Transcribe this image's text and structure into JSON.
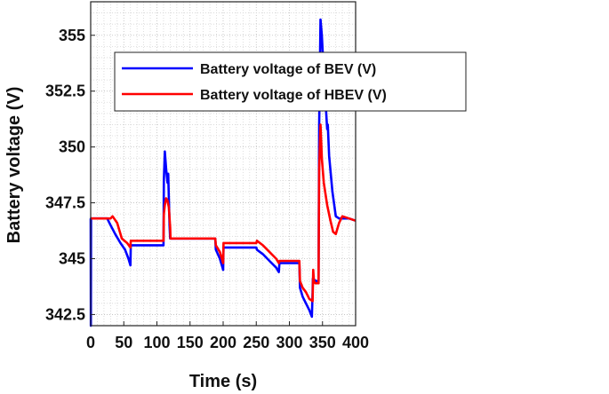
{
  "chart_data": {
    "type": "line",
    "title": "",
    "xlabel": "Time (s)",
    "ylabel": "Battery voltage (V)",
    "xlim": [
      0,
      400
    ],
    "ylim": [
      342,
      356.5
    ],
    "xticks": [
      0,
      50,
      100,
      150,
      200,
      250,
      300,
      350,
      400
    ],
    "yticks": [
      342.5,
      345,
      347.5,
      350,
      352.5,
      355
    ],
    "ytick_labels": [
      "342.5",
      "345",
      "347.5",
      "350",
      "352.5",
      "355"
    ],
    "grid": true,
    "legend_position": "top-left",
    "series": [
      {
        "name": "Battery voltage of BEV (V)",
        "color": "#0000ff",
        "x": [
          0,
          0.3,
          0.6,
          25,
          30,
          37,
          45,
          52,
          57,
          60,
          60.5,
          80,
          100,
          110,
          110.5,
          112,
          114,
          116,
          117,
          119,
          120,
          120.5,
          150,
          188,
          189,
          195,
          199,
          200,
          200.5,
          230,
          250,
          251,
          260,
          270,
          280,
          284,
          285,
          300,
          315,
          316,
          320,
          325,
          330,
          334,
          335,
          335.5,
          340,
          344,
          345,
          347,
          349,
          352,
          355,
          357,
          358,
          360,
          365,
          370,
          375,
          380,
          390,
          400
        ],
        "y": [
          346.8,
          342.0,
          346.8,
          346.8,
          346.5,
          346.1,
          345.7,
          345.4,
          345.0,
          344.7,
          345.6,
          345.6,
          345.6,
          345.6,
          348.5,
          349.8,
          349.0,
          348.4,
          348.8,
          346.5,
          345.9,
          345.9,
          345.9,
          345.9,
          345.4,
          345.0,
          344.6,
          344.5,
          345.5,
          345.5,
          345.5,
          345.4,
          345.2,
          344.9,
          344.6,
          344.4,
          344.8,
          344.8,
          344.8,
          343.7,
          343.3,
          343.0,
          342.7,
          342.4,
          343.5,
          344.1,
          344.0,
          344.0,
          351.0,
          355.7,
          355.0,
          353.3,
          351.8,
          350.8,
          351.0,
          349.6,
          348.0,
          346.9,
          346.8,
          346.8,
          346.8,
          346.7
        ]
      },
      {
        "name": "Battery voltage of HBEV (V)",
        "color": "#ff0000",
        "x": [
          0,
          25,
          30,
          33,
          40,
          47,
          55,
          60,
          60.5,
          80,
          100,
          110,
          110.5,
          112,
          114,
          116,
          118,
          120,
          120.5,
          150,
          188,
          189,
          195,
          199,
          200,
          200.5,
          230,
          250,
          251,
          260,
          270,
          280,
          284,
          285,
          300,
          315,
          316,
          320,
          325,
          330,
          335,
          336,
          337,
          339,
          340,
          344,
          345,
          347,
          349,
          352,
          357,
          362,
          366,
          370,
          375,
          380,
          390,
          400
        ],
        "y": [
          346.8,
          346.8,
          346.8,
          346.9,
          346.6,
          345.9,
          345.7,
          345.5,
          345.8,
          345.8,
          345.8,
          345.8,
          347.0,
          347.4,
          347.7,
          347.6,
          347.3,
          346.4,
          345.9,
          345.9,
          345.9,
          345.6,
          345.3,
          344.9,
          344.8,
          345.7,
          345.7,
          345.7,
          345.8,
          345.6,
          345.3,
          345.0,
          344.8,
          344.9,
          344.9,
          344.9,
          344.0,
          343.7,
          343.5,
          343.2,
          343.1,
          344.5,
          344.0,
          343.9,
          343.9,
          343.9,
          349.0,
          351.0,
          349.5,
          348.4,
          347.4,
          346.7,
          346.2,
          346.1,
          346.6,
          346.9,
          346.8,
          346.7
        ]
      }
    ]
  }
}
